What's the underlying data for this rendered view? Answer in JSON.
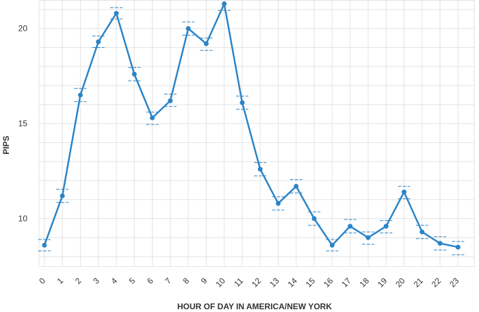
{
  "chart_data": {
    "type": "line",
    "xlabel": "HOUR OF DAY IN AMERICA/NEW YORK",
    "ylabel": "PIPS",
    "x": [
      0,
      1,
      2,
      3,
      4,
      5,
      6,
      7,
      8,
      9,
      10,
      11,
      12,
      13,
      14,
      15,
      16,
      17,
      18,
      19,
      20,
      21,
      22,
      23
    ],
    "x_tick_labels": [
      "0",
      "1",
      "2",
      "3",
      "4",
      "5",
      "6",
      "7",
      "8",
      "9",
      "10",
      "11",
      "12",
      "13",
      "14",
      "15",
      "16",
      "17",
      "18",
      "19",
      "20",
      "21",
      "22",
      "23"
    ],
    "y_ticks": [
      10,
      15,
      20
    ],
    "y_tick_labels": [
      "10",
      "15",
      "20"
    ],
    "ylim": [
      7.5,
      21.5
    ],
    "xlim": [
      -0.3,
      23.9
    ],
    "grid": true,
    "series": [
      {
        "values": [
          8.6,
          11.2,
          16.5,
          19.3,
          20.8,
          17.6,
          15.3,
          16.2,
          20.0,
          19.2,
          21.3,
          16.1,
          12.6,
          10.8,
          11.7,
          10.0,
          8.6,
          9.6,
          9.0,
          9.6,
          11.4,
          9.3,
          8.7,
          8.5
        ],
        "upper": [
          8.9,
          11.55,
          16.85,
          19.6,
          21.1,
          17.95,
          15.6,
          16.55,
          20.35,
          19.5,
          21.6,
          16.45,
          12.95,
          11.15,
          12.05,
          10.35,
          8.9,
          9.95,
          9.3,
          9.9,
          11.7,
          9.65,
          9.05,
          8.8
        ],
        "lower": [
          8.3,
          10.85,
          16.15,
          19.0,
          20.5,
          17.25,
          14.95,
          15.9,
          19.65,
          18.85,
          20.95,
          15.75,
          12.25,
          10.45,
          11.35,
          9.65,
          8.3,
          9.25,
          8.65,
          9.25,
          11.05,
          8.95,
          8.35,
          8.1
        ],
        "color": "#2a84c8"
      }
    ]
  }
}
